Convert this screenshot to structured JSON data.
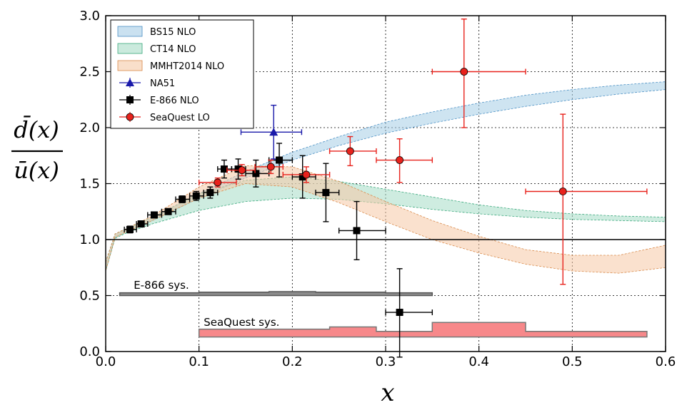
{
  "chart_data": {
    "type": "scatter",
    "xlabel": "x",
    "ylabel": {
      "numerator": "d̄(x)",
      "denominator": "ū(x)"
    },
    "xlim": [
      0.0,
      0.6
    ],
    "ylim": [
      0.0,
      3.0
    ],
    "x_ticks": [
      "0.0",
      "0.1",
      "0.2",
      "0.3",
      "0.4",
      "0.5",
      "0.6"
    ],
    "y_ticks": [
      "0.0",
      "0.5",
      "1.0",
      "1.5",
      "2.0",
      "2.5",
      "3.0"
    ],
    "grid": true,
    "legend_position": "top-left",
    "reference_line_y": 1.0,
    "bands": [
      {
        "name": "BS15 NLO",
        "color": "#a6cde6",
        "edge": "#4a90c4",
        "x": [
          0.0,
          0.01,
          0.02,
          0.05,
          0.1,
          0.15,
          0.2,
          0.25,
          0.3,
          0.35,
          0.4,
          0.45,
          0.5,
          0.55,
          0.6
        ],
        "low": [
          0.72,
          1.02,
          1.06,
          1.17,
          1.37,
          1.55,
          1.71,
          1.84,
          1.95,
          2.04,
          2.12,
          2.19,
          2.25,
          2.3,
          2.34
        ],
        "high": [
          0.8,
          1.05,
          1.09,
          1.2,
          1.41,
          1.61,
          1.78,
          1.92,
          2.05,
          2.14,
          2.22,
          2.29,
          2.34,
          2.38,
          2.41
        ]
      },
      {
        "name": "CT14 NLO",
        "color": "#a6dcc6",
        "edge": "#3aa87c",
        "x": [
          0.0,
          0.01,
          0.02,
          0.05,
          0.1,
          0.15,
          0.2,
          0.25,
          0.3,
          0.35,
          0.4,
          0.45,
          0.5,
          0.55,
          0.6
        ],
        "low": [
          0.72,
          1.01,
          1.05,
          1.14,
          1.26,
          1.34,
          1.37,
          1.36,
          1.32,
          1.27,
          1.23,
          1.2,
          1.18,
          1.17,
          1.16
        ],
        "high": [
          0.8,
          1.05,
          1.09,
          1.2,
          1.41,
          1.53,
          1.56,
          1.52,
          1.45,
          1.38,
          1.31,
          1.26,
          1.23,
          1.21,
          1.2
        ]
      },
      {
        "name": "MMHT2014 NLO",
        "color": "#f5c9a6",
        "edge": "#d98a4a",
        "x": [
          0.0,
          0.01,
          0.02,
          0.05,
          0.1,
          0.15,
          0.2,
          0.25,
          0.3,
          0.35,
          0.4,
          0.45,
          0.5,
          0.55,
          0.6
        ],
        "low": [
          0.72,
          1.02,
          1.06,
          1.17,
          1.37,
          1.5,
          1.47,
          1.33,
          1.16,
          1.0,
          0.88,
          0.78,
          0.72,
          0.7,
          0.75
        ],
        "high": [
          0.8,
          1.05,
          1.09,
          1.21,
          1.47,
          1.66,
          1.65,
          1.52,
          1.34,
          1.17,
          1.03,
          0.91,
          0.86,
          0.86,
          0.95
        ]
      }
    ],
    "series": [
      {
        "name": "NA51",
        "color": "#1a1aaa",
        "marker": "triangle",
        "points": [
          {
            "x": 0.18,
            "y": 1.96,
            "xlo": 0.145,
            "xhi": 0.21,
            "ylo": 1.72,
            "yhi": 2.2
          }
        ]
      },
      {
        "name": "E-866 NLO",
        "color": "#000000",
        "marker": "square",
        "points": [
          {
            "x": 0.026,
            "y": 1.09,
            "xlo": 0.02,
            "xhi": 0.033,
            "ylo": 1.06,
            "yhi": 1.12
          },
          {
            "x": 0.038,
            "y": 1.14,
            "xlo": 0.033,
            "xhi": 0.045,
            "ylo": 1.12,
            "yhi": 1.16
          },
          {
            "x": 0.052,
            "y": 1.22,
            "xlo": 0.045,
            "xhi": 0.06,
            "ylo": 1.2,
            "yhi": 1.24
          },
          {
            "x": 0.067,
            "y": 1.25,
            "xlo": 0.06,
            "xhi": 0.075,
            "ylo": 1.23,
            "yhi": 1.27
          },
          {
            "x": 0.082,
            "y": 1.36,
            "xlo": 0.075,
            "xhi": 0.09,
            "ylo": 1.33,
            "yhi": 1.39
          },
          {
            "x": 0.097,
            "y": 1.39,
            "xlo": 0.09,
            "xhi": 0.105,
            "ylo": 1.35,
            "yhi": 1.43
          },
          {
            "x": 0.112,
            "y": 1.42,
            "xlo": 0.105,
            "xhi": 0.12,
            "ylo": 1.37,
            "yhi": 1.47
          },
          {
            "x": 0.127,
            "y": 1.63,
            "xlo": 0.12,
            "xhi": 0.135,
            "ylo": 1.55,
            "yhi": 1.71
          },
          {
            "x": 0.142,
            "y": 1.63,
            "xlo": 0.135,
            "xhi": 0.15,
            "ylo": 1.54,
            "yhi": 1.72
          },
          {
            "x": 0.161,
            "y": 1.59,
            "xlo": 0.15,
            "xhi": 0.175,
            "ylo": 1.47,
            "yhi": 1.71
          },
          {
            "x": 0.186,
            "y": 1.71,
            "xlo": 0.175,
            "xhi": 0.2,
            "ylo": 1.56,
            "yhi": 1.86
          },
          {
            "x": 0.211,
            "y": 1.56,
            "xlo": 0.2,
            "xhi": 0.225,
            "ylo": 1.37,
            "yhi": 1.75
          },
          {
            "x": 0.236,
            "y": 1.42,
            "xlo": 0.225,
            "xhi": 0.25,
            "ylo": 1.16,
            "yhi": 1.68
          },
          {
            "x": 0.269,
            "y": 1.08,
            "xlo": 0.25,
            "xhi": 0.3,
            "ylo": 0.82,
            "yhi": 1.34
          },
          {
            "x": 0.315,
            "y": 0.35,
            "xlo": 0.3,
            "xhi": 0.35,
            "ylo": -0.05,
            "yhi": 0.74
          }
        ]
      },
      {
        "name": "SeaQuest LO",
        "color": "#e8221c",
        "marker": "circle",
        "points": [
          {
            "x": 0.12,
            "y": 1.51,
            "xlo": 0.1,
            "xhi": 0.14,
            "ylo": 1.47,
            "yhi": 1.55
          },
          {
            "x": 0.146,
            "y": 1.62,
            "xlo": 0.13,
            "xhi": 0.16,
            "ylo": 1.57,
            "yhi": 1.67
          },
          {
            "x": 0.177,
            "y": 1.65,
            "xlo": 0.16,
            "xhi": 0.19,
            "ylo": 1.59,
            "yhi": 1.71
          },
          {
            "x": 0.215,
            "y": 1.58,
            "xlo": 0.19,
            "xhi": 0.24,
            "ylo": 1.51,
            "yhi": 1.65
          },
          {
            "x": 0.262,
            "y": 1.79,
            "xlo": 0.24,
            "xhi": 0.29,
            "ylo": 1.66,
            "yhi": 1.92
          },
          {
            "x": 0.315,
            "y": 1.71,
            "xlo": 0.29,
            "xhi": 0.35,
            "ylo": 1.51,
            "yhi": 1.9
          },
          {
            "x": 0.384,
            "y": 2.5,
            "xlo": 0.35,
            "xhi": 0.45,
            "ylo": 2.0,
            "yhi": 2.97
          },
          {
            "x": 0.49,
            "y": 1.43,
            "xlo": 0.45,
            "xhi": 0.58,
            "ylo": 0.6,
            "yhi": 2.12
          }
        ]
      }
    ],
    "systematics": [
      {
        "name": "E-866 sys.",
        "color": "#8c8c8c",
        "edge": "#555555",
        "steps": [
          {
            "x0": 0.015,
            "x1": 0.1,
            "low": 0.5,
            "high": 0.525
          },
          {
            "x0": 0.1,
            "x1": 0.175,
            "low": 0.5,
            "high": 0.53
          },
          {
            "x0": 0.175,
            "x1": 0.225,
            "low": 0.5,
            "high": 0.535
          },
          {
            "x0": 0.225,
            "x1": 0.3,
            "low": 0.5,
            "high": 0.53
          },
          {
            "x0": 0.3,
            "x1": 0.35,
            "low": 0.5,
            "high": 0.525
          }
        ]
      },
      {
        "name": "SeaQuest sys.",
        "color": "#f7888a",
        "edge": "#777777",
        "steps": [
          {
            "x0": 0.1,
            "x1": 0.24,
            "low": 0.13,
            "high": 0.2
          },
          {
            "x0": 0.24,
            "x1": 0.29,
            "low": 0.13,
            "high": 0.22
          },
          {
            "x0": 0.29,
            "x1": 0.35,
            "low": 0.13,
            "high": 0.18
          },
          {
            "x0": 0.35,
            "x1": 0.45,
            "low": 0.13,
            "high": 0.26
          },
          {
            "x0": 0.45,
            "x1": 0.58,
            "low": 0.13,
            "high": 0.18
          }
        ]
      }
    ],
    "annotations": [
      {
        "text": "E-866 sys.",
        "x": 0.03,
        "y": 0.56
      },
      {
        "text": "SeaQuest sys.",
        "x": 0.105,
        "y": 0.23
      }
    ]
  }
}
